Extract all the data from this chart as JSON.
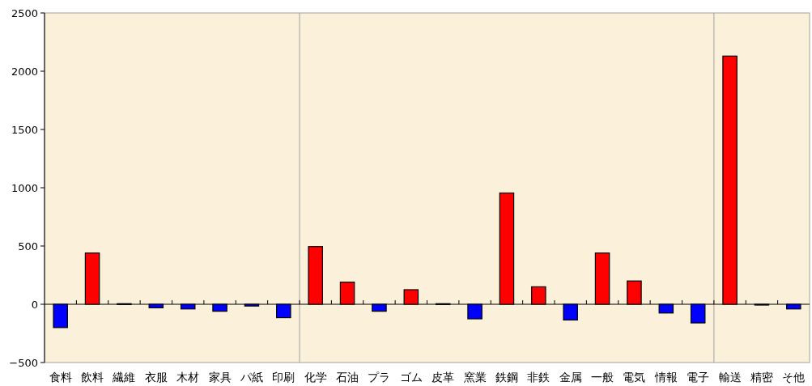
{
  "chart_data": {
    "type": "bar",
    "categories": [
      "食料",
      "飲料",
      "繊維",
      "衣服",
      "木材",
      "家具",
      "パ紙",
      "印刷",
      "化学",
      "石油",
      "プラ",
      "ゴム",
      "皮革",
      "窯業",
      "鉄鋼",
      "非鉄",
      "金属",
      "一般",
      "電気",
      "情報",
      "電子",
      "輸送",
      "精密",
      "そ他"
    ],
    "values": [
      -200,
      440,
      5,
      -30,
      -40,
      -60,
      -15,
      -115,
      495,
      190,
      -60,
      125,
      5,
      -125,
      955,
      150,
      -135,
      440,
      200,
      -75,
      -160,
      2130,
      0,
      -40
    ],
    "colors": [
      "#0000ff",
      "#ff0000",
      "#ff0000",
      "#0000ff",
      "#0000ff",
      "#0000ff",
      "#0000ff",
      "#0000ff",
      "#ff0000",
      "#ff0000",
      "#0000ff",
      "#ff0000",
      "#ff0000",
      "#0000ff",
      "#ff0000",
      "#ff0000",
      "#0000ff",
      "#ff0000",
      "#ff0000",
      "#0000ff",
      "#0000ff",
      "#ff0000",
      "#ff0000",
      "#0000ff"
    ],
    "ylim": [
      -500,
      2500
    ],
    "yticks": [
      -500,
      0,
      500,
      1000,
      1500,
      2000,
      2500
    ]
  }
}
